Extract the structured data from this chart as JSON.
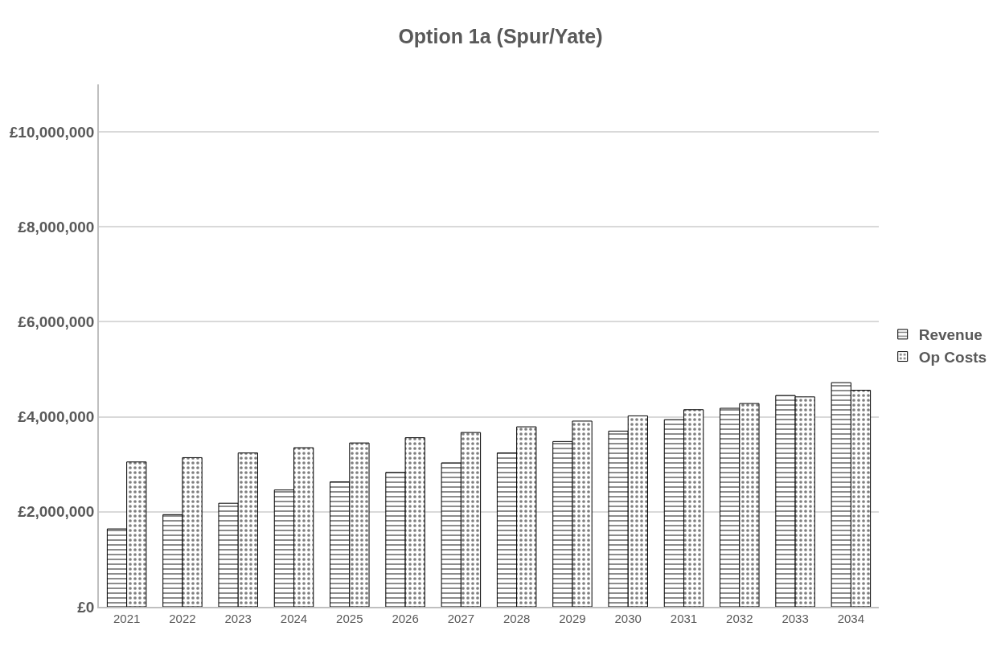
{
  "chart_data": {
    "type": "bar",
    "title": "Option 1a (Spur/Yate)",
    "categories": [
      "2021",
      "2022",
      "2023",
      "2024",
      "2025",
      "2026",
      "2027",
      "2028",
      "2029",
      "2030",
      "2031",
      "2032",
      "2033",
      "2034"
    ],
    "series": [
      {
        "name": "Revenue",
        "color": "#000000",
        "values": [
          1640000,
          1940000,
          2180000,
          2460000,
          2630000,
          2830000,
          3030000,
          3240000,
          3480000,
          3700000,
          3940000,
          4180000,
          4450000,
          4720000
        ]
      },
      {
        "name": "Op Costs",
        "color": "#000000",
        "values": [
          3050000,
          3140000,
          3240000,
          3350000,
          3450000,
          3560000,
          3670000,
          3790000,
          3910000,
          4020000,
          4150000,
          4280000,
          4420000,
          4560000
        ]
      }
    ],
    "ylim": [
      0,
      11000000
    ],
    "yticks": [
      {
        "value": 0,
        "label": "£0"
      },
      {
        "value": 2000000,
        "label": "£2,000,000"
      },
      {
        "value": 4000000,
        "label": "£4,000,000"
      },
      {
        "value": 6000000,
        "label": "£6,000,000"
      },
      {
        "value": 8000000,
        "label": "£8,000,000"
      },
      {
        "value": 10000000,
        "label": "£10,000,000"
      }
    ],
    "grid": "y",
    "legend": "right"
  }
}
